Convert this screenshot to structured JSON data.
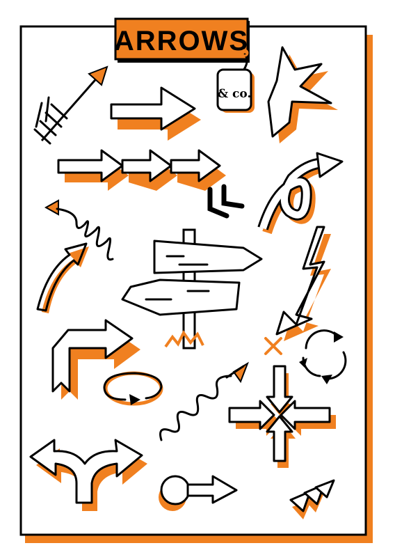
{
  "header": {
    "title": "ARROWS",
    "tag_text": "& co."
  },
  "colors": {
    "accent": "#f08020",
    "ink": "#000000",
    "paper": "#ffffff"
  },
  "icons": [
    "feather-arrow-icon",
    "block-arrow-icon",
    "triple-chevron-arrow-icon",
    "burst-arrow-icon",
    "loop-curved-arrow-icon",
    "spring-arrow-icon",
    "corner-brackets-icon",
    "signpost-icon",
    "curved-arrow-icon",
    "lightning-arrow-icon",
    "bent-ribbon-arrow-icon",
    "x-mark-icon",
    "cycle-arrows-icon",
    "circular-arrow-icon",
    "wavy-arrow-icon",
    "converging-arrows-icon",
    "fork-arrow-icon",
    "keyhole-arrow-icon",
    "double-chevron-icon"
  ]
}
